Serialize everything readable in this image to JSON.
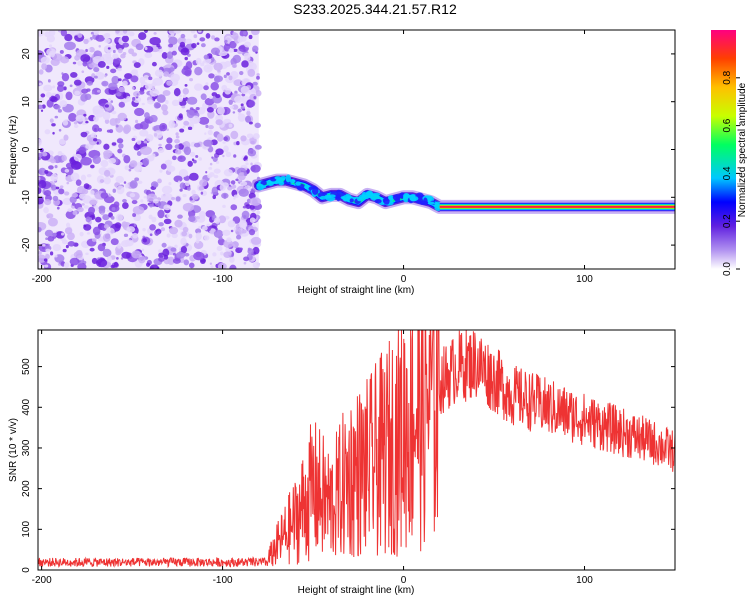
{
  "chart_data": [
    {
      "type": "heatmap",
      "title": "S233.2025.344.21.57.R12",
      "xlabel": "Height of straight line (km)",
      "ylabel": "Frequency (Hz)",
      "xlim": [
        -202,
        150
      ],
      "ylim": [
        -25,
        25
      ],
      "x_ticks": [
        -200,
        -100,
        0,
        100
      ],
      "y_ticks": [
        -20,
        -10,
        0,
        10,
        20
      ],
      "colorbar": {
        "label": "Normalized spectral amplitude",
        "range": [
          0,
          1
        ],
        "ticks": [
          "0.0",
          "0.2",
          "0.4",
          "0.6",
          "0.8"
        ],
        "colors": [
          "#ffffff",
          "#b090f0",
          "#6020e0",
          "#0000ff",
          "#00c8ff",
          "#00ff60",
          "#c8ff00",
          "#ffc000",
          "#ff4000",
          "#ff0080"
        ]
      },
      "noise_region_x": [
        -202,
        -80
      ],
      "signal_track": {
        "x": [
          -80,
          -75,
          -70,
          -65,
          -60,
          -55,
          -50,
          -45,
          -40,
          -35,
          -30,
          -25,
          -20,
          -15,
          -10,
          -5,
          0,
          5,
          10,
          15,
          20,
          40,
          60,
          80,
          100,
          120,
          150
        ],
        "y": [
          -7.5,
          -7,
          -6.5,
          -6.5,
          -7,
          -7.5,
          -8.5,
          -10,
          -9.5,
          -9.5,
          -10.5,
          -11,
          -9.5,
          -10,
          -11,
          -10.5,
          -10,
          -10,
          -10.5,
          -11,
          -12,
          -12,
          -12,
          -12,
          -12,
          -12,
          -12
        ]
      }
    },
    {
      "type": "line",
      "title": "",
      "xlabel": "Height of straight line (km)",
      "ylabel": "SNR (10 * v/v)",
      "xlim": [
        -202,
        150
      ],
      "ylim": [
        0,
        590
      ],
      "x_ticks": [
        -200,
        -100,
        0,
        100
      ],
      "y_ticks": [
        0,
        100,
        200,
        300,
        400,
        500
      ],
      "series": [
        {
          "color": "#ee3333",
          "envelope": {
            "x": [
              -202,
              -80,
              -75,
              -70,
              -60,
              -50,
              -40,
              -30,
              -20,
              -10,
              0,
              10,
              20,
              30,
              40,
              50,
              60,
              80,
              100,
              120,
              140,
              150
            ],
            "y": [
              20,
              20,
              25,
              60,
              120,
              200,
              160,
              230,
              250,
              290,
              350,
              420,
              460,
              500,
              510,
              470,
              430,
              400,
              370,
              340,
              310,
              290
            ]
          }
        }
      ]
    }
  ]
}
